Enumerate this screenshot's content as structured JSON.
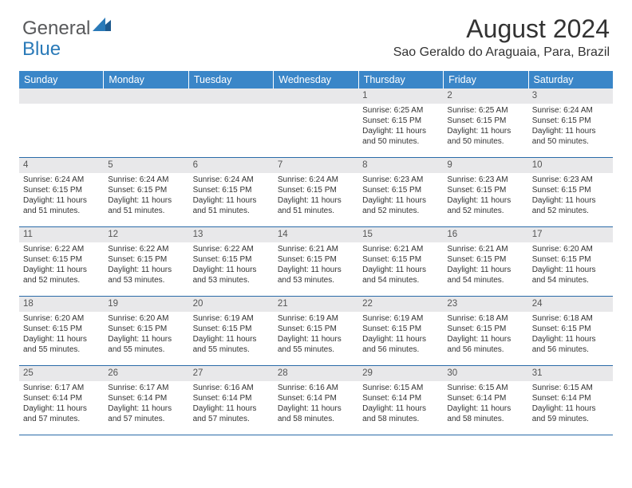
{
  "logo": {
    "text1": "General",
    "text2": "Blue",
    "color1": "#58595b",
    "color2": "#2a7ab8"
  },
  "title": "August 2024",
  "location": "Sao Geraldo do Araguaia, Para, Brazil",
  "weekday_bg": "#3a86c8",
  "daynum_bg": "#e8e8ea",
  "border_color": "#2a6ba8",
  "weekdays": [
    "Sunday",
    "Monday",
    "Tuesday",
    "Wednesday",
    "Thursday",
    "Friday",
    "Saturday"
  ],
  "weeks": [
    [
      {
        "day": "",
        "sunrise": "",
        "sunset": "",
        "daylight": ""
      },
      {
        "day": "",
        "sunrise": "",
        "sunset": "",
        "daylight": ""
      },
      {
        "day": "",
        "sunrise": "",
        "sunset": "",
        "daylight": ""
      },
      {
        "day": "",
        "sunrise": "",
        "sunset": "",
        "daylight": ""
      },
      {
        "day": "1",
        "sunrise": "Sunrise: 6:25 AM",
        "sunset": "Sunset: 6:15 PM",
        "daylight": "Daylight: 11 hours and 50 minutes."
      },
      {
        "day": "2",
        "sunrise": "Sunrise: 6:25 AM",
        "sunset": "Sunset: 6:15 PM",
        "daylight": "Daylight: 11 hours and 50 minutes."
      },
      {
        "day": "3",
        "sunrise": "Sunrise: 6:24 AM",
        "sunset": "Sunset: 6:15 PM",
        "daylight": "Daylight: 11 hours and 50 minutes."
      }
    ],
    [
      {
        "day": "4",
        "sunrise": "Sunrise: 6:24 AM",
        "sunset": "Sunset: 6:15 PM",
        "daylight": "Daylight: 11 hours and 51 minutes."
      },
      {
        "day": "5",
        "sunrise": "Sunrise: 6:24 AM",
        "sunset": "Sunset: 6:15 PM",
        "daylight": "Daylight: 11 hours and 51 minutes."
      },
      {
        "day": "6",
        "sunrise": "Sunrise: 6:24 AM",
        "sunset": "Sunset: 6:15 PM",
        "daylight": "Daylight: 11 hours and 51 minutes."
      },
      {
        "day": "7",
        "sunrise": "Sunrise: 6:24 AM",
        "sunset": "Sunset: 6:15 PM",
        "daylight": "Daylight: 11 hours and 51 minutes."
      },
      {
        "day": "8",
        "sunrise": "Sunrise: 6:23 AM",
        "sunset": "Sunset: 6:15 PM",
        "daylight": "Daylight: 11 hours and 52 minutes."
      },
      {
        "day": "9",
        "sunrise": "Sunrise: 6:23 AM",
        "sunset": "Sunset: 6:15 PM",
        "daylight": "Daylight: 11 hours and 52 minutes."
      },
      {
        "day": "10",
        "sunrise": "Sunrise: 6:23 AM",
        "sunset": "Sunset: 6:15 PM",
        "daylight": "Daylight: 11 hours and 52 minutes."
      }
    ],
    [
      {
        "day": "11",
        "sunrise": "Sunrise: 6:22 AM",
        "sunset": "Sunset: 6:15 PM",
        "daylight": "Daylight: 11 hours and 52 minutes."
      },
      {
        "day": "12",
        "sunrise": "Sunrise: 6:22 AM",
        "sunset": "Sunset: 6:15 PM",
        "daylight": "Daylight: 11 hours and 53 minutes."
      },
      {
        "day": "13",
        "sunrise": "Sunrise: 6:22 AM",
        "sunset": "Sunset: 6:15 PM",
        "daylight": "Daylight: 11 hours and 53 minutes."
      },
      {
        "day": "14",
        "sunrise": "Sunrise: 6:21 AM",
        "sunset": "Sunset: 6:15 PM",
        "daylight": "Daylight: 11 hours and 53 minutes."
      },
      {
        "day": "15",
        "sunrise": "Sunrise: 6:21 AM",
        "sunset": "Sunset: 6:15 PM",
        "daylight": "Daylight: 11 hours and 54 minutes."
      },
      {
        "day": "16",
        "sunrise": "Sunrise: 6:21 AM",
        "sunset": "Sunset: 6:15 PM",
        "daylight": "Daylight: 11 hours and 54 minutes."
      },
      {
        "day": "17",
        "sunrise": "Sunrise: 6:20 AM",
        "sunset": "Sunset: 6:15 PM",
        "daylight": "Daylight: 11 hours and 54 minutes."
      }
    ],
    [
      {
        "day": "18",
        "sunrise": "Sunrise: 6:20 AM",
        "sunset": "Sunset: 6:15 PM",
        "daylight": "Daylight: 11 hours and 55 minutes."
      },
      {
        "day": "19",
        "sunrise": "Sunrise: 6:20 AM",
        "sunset": "Sunset: 6:15 PM",
        "daylight": "Daylight: 11 hours and 55 minutes."
      },
      {
        "day": "20",
        "sunrise": "Sunrise: 6:19 AM",
        "sunset": "Sunset: 6:15 PM",
        "daylight": "Daylight: 11 hours and 55 minutes."
      },
      {
        "day": "21",
        "sunrise": "Sunrise: 6:19 AM",
        "sunset": "Sunset: 6:15 PM",
        "daylight": "Daylight: 11 hours and 55 minutes."
      },
      {
        "day": "22",
        "sunrise": "Sunrise: 6:19 AM",
        "sunset": "Sunset: 6:15 PM",
        "daylight": "Daylight: 11 hours and 56 minutes."
      },
      {
        "day": "23",
        "sunrise": "Sunrise: 6:18 AM",
        "sunset": "Sunset: 6:15 PM",
        "daylight": "Daylight: 11 hours and 56 minutes."
      },
      {
        "day": "24",
        "sunrise": "Sunrise: 6:18 AM",
        "sunset": "Sunset: 6:15 PM",
        "daylight": "Daylight: 11 hours and 56 minutes."
      }
    ],
    [
      {
        "day": "25",
        "sunrise": "Sunrise: 6:17 AM",
        "sunset": "Sunset: 6:14 PM",
        "daylight": "Daylight: 11 hours and 57 minutes."
      },
      {
        "day": "26",
        "sunrise": "Sunrise: 6:17 AM",
        "sunset": "Sunset: 6:14 PM",
        "daylight": "Daylight: 11 hours and 57 minutes."
      },
      {
        "day": "27",
        "sunrise": "Sunrise: 6:16 AM",
        "sunset": "Sunset: 6:14 PM",
        "daylight": "Daylight: 11 hours and 57 minutes."
      },
      {
        "day": "28",
        "sunrise": "Sunrise: 6:16 AM",
        "sunset": "Sunset: 6:14 PM",
        "daylight": "Daylight: 11 hours and 58 minutes."
      },
      {
        "day": "29",
        "sunrise": "Sunrise: 6:15 AM",
        "sunset": "Sunset: 6:14 PM",
        "daylight": "Daylight: 11 hours and 58 minutes."
      },
      {
        "day": "30",
        "sunrise": "Sunrise: 6:15 AM",
        "sunset": "Sunset: 6:14 PM",
        "daylight": "Daylight: 11 hours and 58 minutes."
      },
      {
        "day": "31",
        "sunrise": "Sunrise: 6:15 AM",
        "sunset": "Sunset: 6:14 PM",
        "daylight": "Daylight: 11 hours and 59 minutes."
      }
    ]
  ]
}
